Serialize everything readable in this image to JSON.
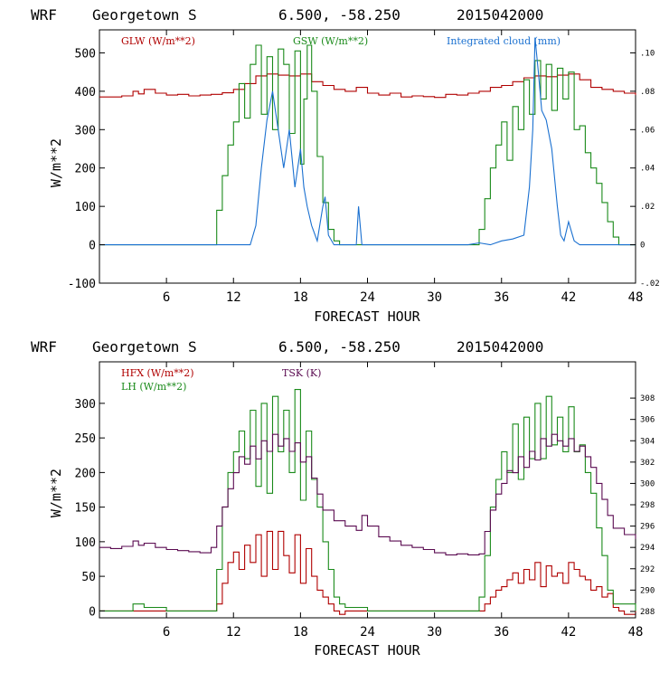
{
  "chart_data": [
    {
      "type": "line",
      "header": {
        "model": "WRF",
        "location": "Georgetown S",
        "coords": "6.500, -58.250",
        "run": "2015042000"
      },
      "xlabel": "FORECAST HOUR",
      "ylabel": "W/m**2",
      "xlim": [
        0,
        48
      ],
      "ylim": [
        -100,
        560
      ],
      "y2lim": [
        -0.02,
        0.112
      ],
      "xticks": [
        6,
        12,
        18,
        24,
        30,
        36,
        42,
        48
      ],
      "xtick_labels": [
        "6",
        "12",
        "18",
        "24",
        "30",
        "36",
        "42",
        "48"
      ],
      "yticks": [
        -100,
        0,
        100,
        200,
        300,
        400,
        500
      ],
      "ytick_labels": [
        "-100",
        "0",
        "100",
        "200",
        "300",
        "400",
        "500"
      ],
      "y2ticks": [
        -0.02,
        0,
        0.02,
        0.04,
        0.06,
        0.08,
        0.1
      ],
      "y2tick_labels": [
        "-.02",
        "0",
        ".02",
        ".04",
        ".06",
        ".08",
        ".10"
      ],
      "grid": false,
      "legend_position": "top",
      "series": [
        {
          "name": "GLW (W/m**2)",
          "color": "#b00000",
          "axis": "left",
          "step": true,
          "x": [
            0,
            1,
            2,
            3,
            3.5,
            4,
            5,
            6,
            7,
            8,
            9,
            10,
            11,
            12,
            13,
            14,
            15,
            16,
            17,
            18,
            19,
            20,
            21,
            22,
            23,
            24,
            25,
            26,
            27,
            28,
            29,
            30,
            31,
            32,
            33,
            34,
            35,
            36,
            37,
            38,
            39,
            40,
            41,
            42,
            43,
            44,
            45,
            46,
            47,
            48
          ],
          "y": [
            385,
            385,
            388,
            400,
            393,
            405,
            395,
            390,
            392,
            388,
            390,
            392,
            396,
            405,
            420,
            440,
            445,
            442,
            440,
            445,
            425,
            415,
            405,
            400,
            410,
            395,
            390,
            395,
            385,
            388,
            386,
            384,
            392,
            390,
            395,
            400,
            410,
            415,
            425,
            435,
            440,
            438,
            442,
            445,
            430,
            410,
            405,
            400,
            395,
            390
          ]
        },
        {
          "name": "GSW (W/m**2)",
          "color": "#1a8a1a",
          "axis": "left",
          "step": true,
          "x": [
            0,
            9.8,
            10.5,
            11,
            11.5,
            12,
            12.5,
            13,
            13.5,
            14,
            14.5,
            15,
            15.5,
            16,
            16.5,
            17,
            17.5,
            18,
            18.3,
            18.6,
            19,
            19.5,
            20,
            20.5,
            21,
            21.5,
            22,
            33.5,
            34,
            34.5,
            35,
            35.5,
            36,
            36.5,
            37,
            37.5,
            38,
            38.5,
            39,
            39.5,
            40,
            40.5,
            41,
            41.5,
            42,
            42.5,
            43,
            43.5,
            44,
            44.5,
            45,
            45.5,
            46,
            46.5,
            48
          ],
          "y": [
            0,
            0,
            90,
            180,
            260,
            320,
            420,
            330,
            470,
            520,
            340,
            490,
            300,
            510,
            470,
            290,
            505,
            210,
            380,
            520,
            400,
            230,
            110,
            40,
            10,
            0,
            0,
            0,
            40,
            120,
            200,
            260,
            320,
            220,
            360,
            300,
            430,
            340,
            480,
            380,
            470,
            350,
            460,
            380,
            450,
            300,
            310,
            240,
            200,
            160,
            110,
            60,
            20,
            0,
            0
          ]
        },
        {
          "name": "Integrated cloud (mm)",
          "color": "#1a70d0",
          "axis": "right",
          "x": [
            0,
            13.5,
            14,
            14.5,
            15,
            15.5,
            16,
            16.5,
            17,
            17.5,
            18,
            18.3,
            18.6,
            19,
            19.5,
            20,
            20.2,
            20.5,
            21,
            21.5,
            22,
            23,
            23.2,
            23.5,
            23.8,
            24,
            33,
            34,
            35,
            36,
            37,
            38,
            38.5,
            38.8,
            39,
            39.3,
            39.6,
            40,
            40.5,
            41,
            41.3,
            41.6,
            42,
            42.3,
            42.5,
            43,
            44,
            45,
            46,
            48
          ],
          "y": [
            0,
            0,
            0.01,
            0.04,
            0.065,
            0.08,
            0.06,
            0.04,
            0.06,
            0.03,
            0.05,
            0.03,
            0.02,
            0.01,
            0.002,
            0.02,
            0.025,
            0.005,
            0.0,
            0.0,
            0.0,
            0.0,
            0.02,
            0.0,
            0.0,
            0.0,
            0.0,
            0.001,
            0.0,
            0.002,
            0.003,
            0.005,
            0.03,
            0.06,
            0.108,
            0.09,
            0.07,
            0.065,
            0.05,
            0.02,
            0.005,
            0.002,
            0.012,
            0.006,
            0.002,
            0.0,
            0.0,
            0.0,
            0.0,
            0.0
          ]
        }
      ]
    },
    {
      "type": "line",
      "header": {
        "model": "WRF",
        "location": "Georgetown S",
        "coords": "6.500, -58.250",
        "run": "2015042000"
      },
      "xlabel": "FORECAST HOUR",
      "ylabel": "W/m**2",
      "xlim": [
        0,
        48
      ],
      "ylim": [
        -10,
        360
      ],
      "y2lim": [
        287.4,
        311.4
      ],
      "xticks": [
        6,
        12,
        18,
        24,
        30,
        36,
        42,
        48
      ],
      "xtick_labels": [
        "6",
        "12",
        "18",
        "24",
        "30",
        "36",
        "42",
        "48"
      ],
      "yticks": [
        0,
        50,
        100,
        150,
        200,
        250,
        300
      ],
      "ytick_labels": [
        "0",
        "50",
        "100",
        "150",
        "200",
        "250",
        "300"
      ],
      "y2ticks": [
        288,
        290,
        292,
        294,
        296,
        298,
        300,
        302,
        304,
        306,
        308
      ],
      "y2tick_labels": [
        "288",
        "290",
        "292",
        "294",
        "296",
        "298",
        "300",
        "302",
        "304",
        "306",
        "308"
      ],
      "grid": false,
      "legend_position": "top-left",
      "series": [
        {
          "name": "HFX (W/m**2)",
          "color": "#b00000",
          "axis": "left",
          "step": true,
          "x": [
            0,
            10,
            10.5,
            11,
            11.5,
            12,
            12.5,
            13,
            13.5,
            14,
            14.5,
            15,
            15.5,
            16,
            16.5,
            17,
            17.5,
            18,
            18.5,
            19,
            19.5,
            20,
            20.5,
            21,
            21.5,
            22,
            34,
            34.5,
            35,
            35.5,
            36,
            36.5,
            37,
            37.5,
            38,
            38.5,
            39,
            39.5,
            40,
            40.5,
            41,
            41.5,
            42,
            42.5,
            43,
            43.5,
            44,
            44.5,
            45,
            45.5,
            46,
            46.5,
            47,
            48
          ],
          "y": [
            0,
            0,
            10,
            40,
            70,
            85,
            60,
            95,
            70,
            110,
            50,
            115,
            60,
            115,
            80,
            55,
            110,
            40,
            90,
            50,
            30,
            20,
            10,
            0,
            -5,
            0,
            0,
            10,
            20,
            30,
            35,
            45,
            55,
            40,
            60,
            45,
            70,
            35,
            65,
            50,
            55,
            40,
            70,
            60,
            50,
            45,
            30,
            35,
            20,
            25,
            5,
            0,
            -5,
            0
          ]
        },
        {
          "name": "LH (W/m**2)",
          "color": "#1a8a1a",
          "axis": "left",
          "step": true,
          "x": [
            0,
            3,
            4,
            6,
            8,
            10,
            10.5,
            11,
            11.5,
            12,
            12.5,
            13,
            13.5,
            14,
            14.5,
            15,
            15.5,
            16,
            16.5,
            17,
            17.5,
            18,
            18.5,
            19,
            19.5,
            20,
            20.5,
            21,
            21.5,
            22,
            24,
            26,
            28,
            30,
            32,
            33.5,
            34,
            34.5,
            35,
            35.5,
            36,
            36.5,
            37,
            37.5,
            38,
            38.5,
            39,
            39.5,
            40,
            40.5,
            41,
            41.5,
            42,
            42.5,
            43,
            43.5,
            44,
            44.5,
            45,
            45.5,
            46,
            48
          ],
          "y": [
            0,
            10,
            5,
            0,
            0,
            0,
            60,
            150,
            200,
            230,
            260,
            220,
            290,
            180,
            300,
            170,
            310,
            230,
            290,
            200,
            320,
            160,
            260,
            190,
            150,
            100,
            60,
            20,
            10,
            5,
            0,
            0,
            0,
            0,
            0,
            0,
            20,
            80,
            150,
            190,
            230,
            200,
            270,
            190,
            280,
            220,
            300,
            220,
            310,
            240,
            280,
            230,
            295,
            230,
            240,
            200,
            170,
            120,
            80,
            30,
            10,
            0
          ]
        },
        {
          "name": "TSK (K)",
          "color": "#5a0a50",
          "axis": "right",
          "step": true,
          "x": [
            0,
            1,
            2,
            3,
            3.5,
            4,
            5,
            6,
            7,
            8,
            9,
            10,
            10.5,
            11,
            11.5,
            12,
            12.5,
            13,
            13.5,
            14,
            14.5,
            15,
            15.5,
            16,
            16.5,
            17,
            17.5,
            18,
            18.5,
            19,
            19.5,
            20,
            21,
            22,
            23,
            23.5,
            24,
            25,
            26,
            27,
            28,
            29,
            30,
            31,
            32,
            33,
            34,
            34.5,
            35,
            35.5,
            36,
            36.5,
            37,
            37.5,
            38,
            38.5,
            39,
            39.5,
            40,
            40.5,
            41,
            41.5,
            42,
            42.5,
            43,
            43.5,
            44,
            44.5,
            45,
            45.5,
            46,
            47,
            48
          ],
          "y": [
            294.0,
            293.9,
            294.1,
            294.6,
            294.2,
            294.4,
            294.0,
            293.8,
            293.7,
            293.6,
            293.5,
            294.0,
            296.0,
            297.8,
            299.5,
            301.0,
            302.5,
            301.8,
            303.5,
            302.3,
            304.0,
            303.0,
            304.6,
            303.5,
            304.2,
            303.0,
            303.8,
            302.0,
            302.5,
            300.5,
            299.0,
            297.5,
            296.5,
            296.0,
            295.6,
            297.0,
            296.0,
            295.0,
            294.6,
            294.2,
            294.0,
            293.8,
            293.5,
            293.3,
            293.4,
            293.3,
            293.4,
            295.5,
            297.5,
            299.0,
            300.0,
            301.2,
            301.0,
            302.5,
            301.5,
            303.0,
            302.2,
            304.2,
            303.5,
            304.6,
            304.0,
            303.5,
            304.2,
            303.0,
            303.5,
            302.5,
            301.5,
            300.0,
            298.5,
            297.0,
            295.8,
            295.2,
            294.8
          ]
        }
      ]
    }
  ]
}
